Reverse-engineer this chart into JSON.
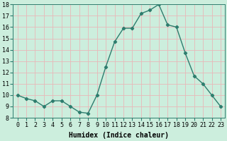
{
  "x": [
    0,
    1,
    2,
    3,
    4,
    5,
    6,
    7,
    8,
    9,
    10,
    11,
    12,
    13,
    14,
    15,
    16,
    17,
    18,
    19,
    20,
    21,
    22,
    23
  ],
  "y": [
    10.0,
    9.7,
    9.5,
    9.0,
    9.5,
    9.5,
    9.0,
    8.5,
    8.4,
    10.0,
    12.5,
    14.7,
    15.9,
    15.9,
    17.2,
    17.5,
    18.0,
    16.2,
    16.0,
    13.7,
    11.7,
    11.0,
    10.0,
    9.0
  ],
  "line_color": "#2e7d6e",
  "bg_color": "#cceedd",
  "grid_color": "#e8b8b8",
  "xlabel": "Humidex (Indice chaleur)",
  "ylim": [
    8,
    18
  ],
  "xlim": [
    -0.5,
    23.5
  ],
  "yticks": [
    8,
    9,
    10,
    11,
    12,
    13,
    14,
    15,
    16,
    17,
    18
  ],
  "xticks": [
    0,
    1,
    2,
    3,
    4,
    5,
    6,
    7,
    8,
    9,
    10,
    11,
    12,
    13,
    14,
    15,
    16,
    17,
    18,
    19,
    20,
    21,
    22,
    23
  ],
  "marker": "D",
  "marker_size": 2.2,
  "line_width": 1.0,
  "xlabel_fontsize": 7,
  "tick_fontsize": 6
}
